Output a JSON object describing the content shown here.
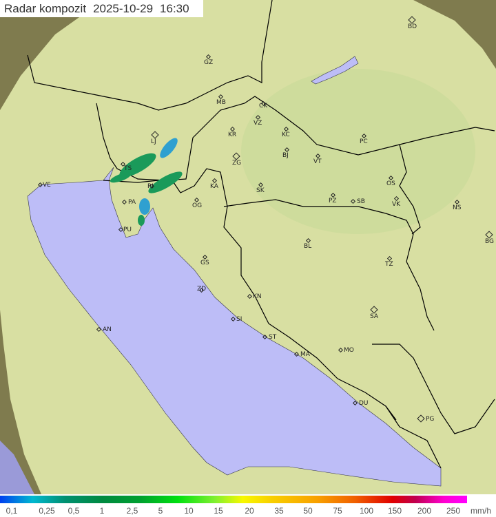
{
  "title": {
    "label": "Radar kompozit",
    "date": "2025-10-29",
    "time": "16:30"
  },
  "colors": {
    "land": "#d8dfa2",
    "sea": "#bdbdf7",
    "outside": "#8a8656",
    "border": "#000000",
    "precip_light": "#2fa0d0",
    "precip_mid": "#1a9a5a"
  },
  "cities": [
    "GZ",
    "MB",
    "CK",
    "VZ",
    "KR",
    "KC",
    "LJ",
    "BD",
    "PC",
    "BJ",
    "VT",
    "ZG",
    "TS",
    "VE",
    "KA",
    "SK",
    "OS",
    "RI",
    "PA",
    "OG",
    "PZ",
    "SB",
    "VK",
    "NS",
    "PU",
    "BG",
    "BL",
    "TZ",
    "GS",
    "ZD",
    "KN",
    "SA",
    "AN",
    "SI",
    "ST",
    "MA",
    "MO",
    "DU",
    "PG"
  ],
  "legend": {
    "values": [
      "0,1",
      "0,25",
      "0,5",
      "1",
      "2,5",
      "5",
      "10",
      "15",
      "20",
      "35",
      "50",
      "75",
      "100",
      "150",
      "200",
      "250"
    ],
    "unit": "mm/h"
  }
}
